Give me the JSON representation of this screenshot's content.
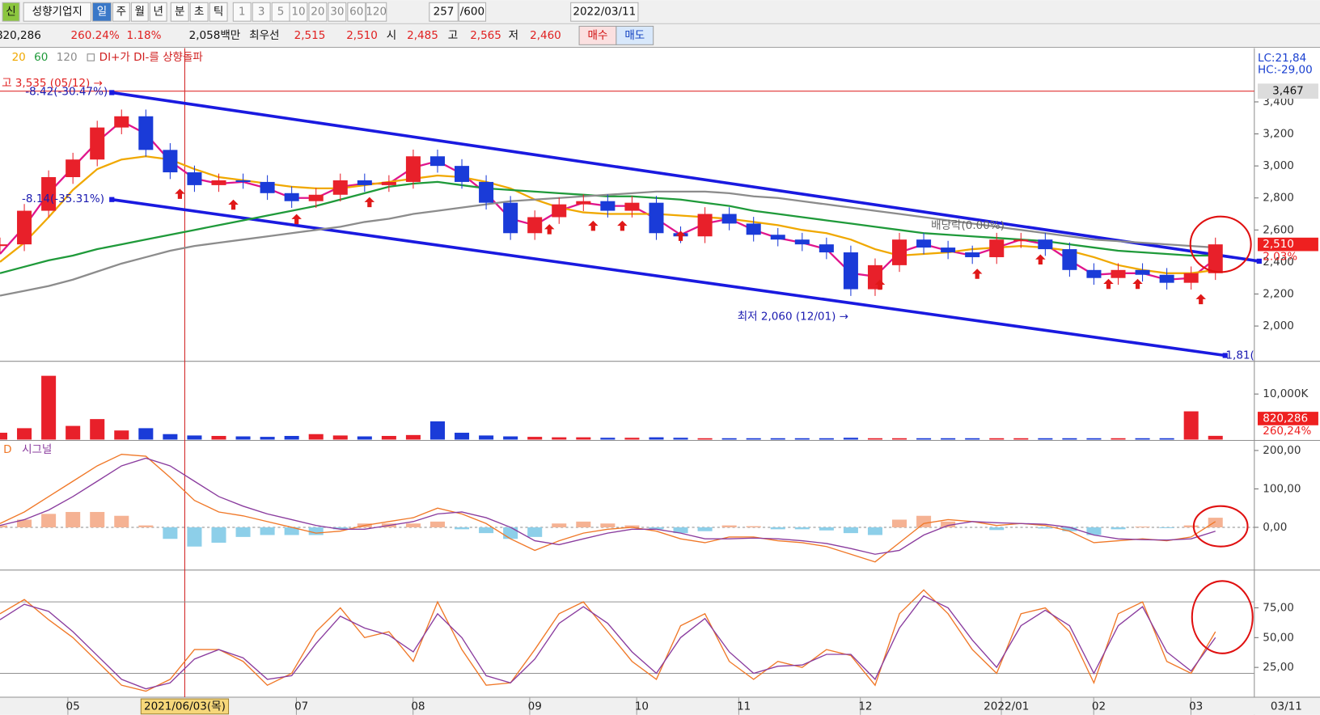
{
  "toolbar": {
    "row1": [
      "신",
      "성향기업지",
      "일",
      "주",
      "월",
      "년",
      "분",
      "초",
      "틱",
      "1",
      "3",
      "5",
      "10",
      "20",
      "30",
      "60",
      "120",
      "257",
      "/600",
      "2022/03/11"
    ],
    "row2": [
      "820,286",
      "260.24%",
      "1.18%",
      "2,058백만",
      "최우선",
      "2,515",
      "2,510",
      "시",
      "2,485",
      "고",
      "2,565",
      "저",
      "2,460",
      "매수",
      "매도"
    ]
  },
  "chart_data": [
    {
      "type": "candlestick",
      "legend_signal": "DI+가 DI-를 상향돌파",
      "up_color": "#e8202a",
      "down_color": "#1a3bd8",
      "x": [
        0,
        5,
        10,
        15,
        20,
        25,
        30,
        35,
        40,
        45,
        50,
        55,
        60,
        65,
        70,
        75,
        80,
        85,
        90,
        95,
        100,
        105,
        110,
        115,
        120,
        125,
        130,
        135,
        140,
        145,
        150,
        155,
        160,
        165,
        170,
        175,
        180,
        185,
        190,
        195,
        200,
        205,
        210,
        215,
        220,
        225,
        230,
        235,
        240,
        245,
        250
      ],
      "values": [
        2510,
        2720,
        2930,
        3040,
        3240,
        3310,
        3100,
        2960,
        2880,
        2910,
        2900,
        2830,
        2780,
        2820,
        2910,
        2880,
        2900,
        3060,
        3000,
        2900,
        2770,
        2580,
        2680,
        2760,
        2780,
        2720,
        2770,
        2580,
        2560,
        2700,
        2640,
        2570,
        2540,
        2510,
        2460,
        2230,
        2380,
        2540,
        2490,
        2460,
        2430,
        2540,
        2540,
        2480,
        2350,
        2300,
        2350,
        2320,
        2270,
        2330,
        2510
      ],
      "series": [
        {
          "color": "#e0158c",
          "values": [
            2450,
            2620,
            2830,
            2990,
            3150,
            3280,
            3200,
            3030,
            2920,
            2890,
            2900,
            2860,
            2800,
            2800,
            2870,
            2890,
            2890,
            2990,
            3030,
            2950,
            2830,
            2670,
            2630,
            2720,
            2770,
            2750,
            2750,
            2670,
            2570,
            2640,
            2670,
            2600,
            2550,
            2520,
            2480,
            2330,
            2310,
            2460,
            2510,
            2470,
            2440,
            2490,
            2540,
            2510,
            2410,
            2320,
            2330,
            2330,
            2290,
            2300,
            2420
          ]
        },
        {
          "name": "20",
          "color": "#f0a800",
          "values": [
            2400,
            2520,
            2680,
            2850,
            2980,
            3040,
            3060,
            3040,
            2980,
            2930,
            2910,
            2890,
            2870,
            2860,
            2860,
            2880,
            2900,
            2920,
            2940,
            2930,
            2900,
            2860,
            2790,
            2740,
            2710,
            2700,
            2700,
            2700,
            2690,
            2680,
            2670,
            2650,
            2630,
            2600,
            2580,
            2540,
            2480,
            2440,
            2450,
            2460,
            2480,
            2490,
            2500,
            2490,
            2470,
            2430,
            2380,
            2350,
            2330,
            2330,
            2350
          ]
        },
        {
          "name": "60",
          "color": "#1f9a3a",
          "values": [
            2330,
            2370,
            2410,
            2440,
            2480,
            2510,
            2540,
            2570,
            2600,
            2630,
            2660,
            2690,
            2720,
            2750,
            2790,
            2830,
            2870,
            2890,
            2900,
            2880,
            2860,
            2850,
            2840,
            2830,
            2820,
            2810,
            2810,
            2800,
            2790,
            2770,
            2750,
            2720,
            2700,
            2680,
            2660,
            2640,
            2620,
            2600,
            2580,
            2570,
            2560,
            2550,
            2540,
            2530,
            2510,
            2490,
            2470,
            2460,
            2450,
            2440,
            2440
          ]
        },
        {
          "name": "120",
          "color": "#8c8c8c",
          "values": [
            2190,
            2220,
            2250,
            2290,
            2340,
            2390,
            2430,
            2470,
            2500,
            2520,
            2540,
            2560,
            2580,
            2600,
            2620,
            2650,
            2670,
            2700,
            2720,
            2740,
            2760,
            2780,
            2790,
            2800,
            2810,
            2820,
            2830,
            2840,
            2840,
            2840,
            2830,
            2810,
            2800,
            2780,
            2760,
            2740,
            2720,
            2700,
            2680,
            2660,
            2640,
            2620,
            2600,
            2580,
            2560,
            2540,
            2530,
            2520,
            2510,
            2500,
            2490
          ]
        }
      ],
      "xlim": [
        0,
        258
      ],
      "ylim": [
        1785,
        3720
      ],
      "yticks": [
        {
          "value": 2000,
          "label": "2,000"
        },
        {
          "value": 2200,
          "label": "2,200"
        },
        {
          "value": 2400,
          "label": "2,400"
        },
        {
          "value": 2600,
          "label": "2,600"
        },
        {
          "value": 2800,
          "label": "2,800"
        },
        {
          "value": 3000,
          "label": "3,000"
        },
        {
          "value": 3200,
          "label": "3,200"
        },
        {
          "value": 3400,
          "label": "3,400"
        }
      ],
      "xticks": [
        {
          "value": 15,
          "label": "05"
        },
        {
          "value": 62,
          "label": "07"
        },
        {
          "value": 86,
          "label": "08"
        },
        {
          "value": 110,
          "label": "09"
        },
        {
          "value": 132,
          "label": "10"
        },
        {
          "value": 153,
          "label": "11"
        },
        {
          "value": 178,
          "label": "12"
        },
        {
          "value": 207,
          "label": "2022/01"
        },
        {
          "value": 226,
          "label": "02"
        },
        {
          "value": 246,
          "label": "03"
        }
      ],
      "xaxis_end_label": "03/11",
      "cursor": {
        "value": 38,
        "label": "2021/06/03(목)"
      },
      "channel": {
        "color": "#1a1ae0",
        "upper": {
          "x": [
            23,
            259
          ],
          "y": [
            3458,
            2405
          ]
        },
        "lower": {
          "x": [
            23,
            252
          ],
          "y": [
            2790,
            1816
          ]
        }
      },
      "hline": {
        "value": 3467,
        "label": "3,467"
      },
      "last": {
        "value": 2510,
        "label": "2,510"
      },
      "change_label": "2.03%",
      "lc_label": "LC:21,84",
      "hc_label": "HC:-29,00",
      "signals": {
        "x": [
          37,
          48,
          61,
          76,
          113,
          122,
          128,
          140,
          181,
          201,
          214,
          228,
          234,
          247
        ],
        "y": [
          2826,
          2758,
          2668,
          2774,
          2605,
          2626,
          2626,
          2563,
          2258,
          2326,
          2416,
          2263,
          2263,
          2168
        ]
      },
      "annotations": [
        "고 3,535 (05/12) →",
        "-8.42(-30.47%)",
        "-8.14(-35.31%)",
        "최저 2,060 (12/01) →",
        "배당락(0.00%)",
        "1,81("
      ]
    },
    {
      "type": "bar",
      "values": [
        1500,
        2500,
        14000,
        3000,
        4500,
        2000,
        2500,
        1200,
        900,
        800,
        700,
        600,
        800,
        1200,
        900,
        700,
        800,
        1000,
        4000,
        1500,
        900,
        700,
        600,
        500,
        500,
        400,
        400,
        500,
        400,
        300,
        300,
        300,
        300,
        300,
        300,
        400,
        300,
        300,
        300,
        300,
        300,
        300,
        300,
        300,
        300,
        300,
        300,
        300,
        300,
        6200,
        820.286
      ],
      "ylim": [
        0,
        17000
      ],
      "yticks": [
        {
          "value": 10000,
          "label": "10,000K"
        }
      ],
      "last": {
        "value": 820.286,
        "label": "820,286"
      },
      "ratio_label": "260,24%"
    },
    {
      "type": "line",
      "series": [
        {
          "name": "D",
          "color": "#f07828",
          "values": [
            10,
            40,
            80,
            120,
            160,
            190,
            185,
            130,
            70,
            40,
            30,
            15,
            0,
            -15,
            -10,
            5,
            15,
            25,
            50,
            35,
            10,
            -30,
            -60,
            -35,
            -15,
            -5,
            0,
            -10,
            -30,
            -40,
            -25,
            -25,
            -35,
            -40,
            -50,
            -70,
            -90,
            -40,
            10,
            20,
            15,
            5,
            10,
            5,
            -10,
            -40,
            -35,
            -30,
            -35,
            -25,
            15
          ]
        },
        {
          "name": "시그널",
          "color": "#8a3c9e",
          "values": [
            5,
            20,
            45,
            80,
            120,
            160,
            180,
            160,
            120,
            80,
            55,
            35,
            20,
            5,
            -5,
            -5,
            5,
            15,
            35,
            40,
            25,
            0,
            -35,
            -45,
            -30,
            -15,
            -5,
            -5,
            -15,
            -30,
            -30,
            -28,
            -30,
            -35,
            -42,
            -55,
            -70,
            -60,
            -20,
            5,
            15,
            12,
            10,
            8,
            0,
            -20,
            -30,
            -32,
            -33,
            -30,
            -10
          ]
        }
      ],
      "histogram": {
        "up_color": "#f5b293",
        "down_color": "#8dcfe9",
        "values": [
          5,
          20,
          35,
          40,
          40,
          30,
          5,
          -30,
          -50,
          -40,
          -25,
          -20,
          -20,
          -20,
          -5,
          10,
          10,
          10,
          15,
          -5,
          -15,
          -30,
          -25,
          10,
          15,
          10,
          5,
          -5,
          -15,
          -10,
          5,
          3,
          -5,
          -5,
          -8,
          -15,
          -20,
          20,
          30,
          15,
          0,
          -7,
          0,
          -3,
          -10,
          -20,
          -5,
          2,
          -2,
          5,
          25
        ]
      },
      "ylim": [
        -109,
        224
      ],
      "yticks": [
        {
          "value": 0,
          "label": "0,00"
        },
        {
          "value": 100,
          "label": "100,00"
        },
        {
          "value": 200,
          "label": "200,00"
        }
      ]
    },
    {
      "type": "line",
      "series": [
        {
          "color": "#f07828",
          "values": [
            70,
            82,
            65,
            50,
            30,
            10,
            5,
            15,
            40,
            40,
            30,
            10,
            20,
            55,
            75,
            50,
            55,
            30,
            80,
            40,
            10,
            12,
            40,
            70,
            80,
            55,
            30,
            15,
            60,
            70,
            30,
            15,
            30,
            25,
            40,
            35,
            10,
            70,
            90,
            70,
            40,
            20,
            70,
            75,
            55,
            12,
            70,
            80,
            30,
            20,
            55
          ]
        },
        {
          "color": "#8a3c9e",
          "values": [
            65,
            78,
            72,
            55,
            35,
            15,
            7,
            12,
            32,
            40,
            33,
            15,
            18,
            45,
            68,
            58,
            52,
            38,
            70,
            50,
            18,
            12,
            32,
            62,
            76,
            62,
            38,
            20,
            50,
            66,
            38,
            20,
            26,
            27,
            36,
            36,
            15,
            58,
            85,
            75,
            48,
            25,
            60,
            73,
            60,
            20,
            60,
            76,
            38,
            22,
            50
          ]
        }
      ],
      "ref_lines": [
        20,
        80
      ],
      "ylim": [
        0,
        106
      ],
      "yticks": [
        {
          "value": 25,
          "label": "25,00"
        },
        {
          "value": 50,
          "label": "50,00"
        },
        {
          "value": 75,
          "label": "75,00"
        }
      ]
    }
  ]
}
